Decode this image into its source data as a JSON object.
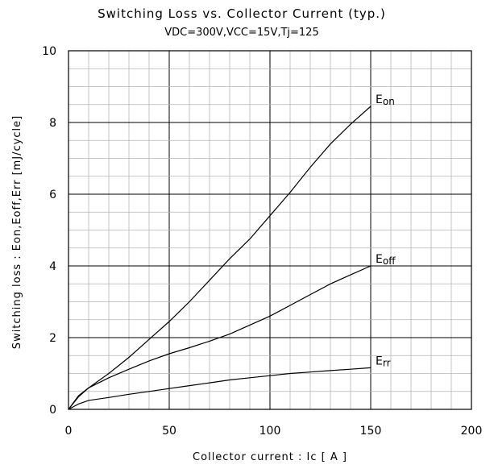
{
  "chart_data": {
    "type": "line",
    "title": "Switching Loss vs. Collector Current (typ.)",
    "subtitle": "VDC=300V,VCC=15V,Tj=125",
    "xlabel": "Collector current : Ic [ A ]",
    "ylabel": "Switching loss : Eon,Eoff,Err [mJ/cycle]",
    "xlim": [
      0,
      200
    ],
    "ylim": [
      0,
      10
    ],
    "x_ticks": [
      "0",
      "50",
      "100",
      "150",
      "200"
    ],
    "y_ticks": [
      "0",
      "2",
      "4",
      "6",
      "8",
      "10"
    ],
    "grid": "on",
    "series": [
      {
        "name": "Eon",
        "x": [
          0,
          5,
          10,
          20,
          30,
          40,
          50,
          60,
          70,
          80,
          90,
          100,
          110,
          120,
          130,
          140,
          150
        ],
        "values": [
          0,
          0.35,
          0.6,
          1.0,
          1.45,
          1.95,
          2.45,
          3.0,
          3.6,
          4.2,
          4.75,
          5.4,
          6.05,
          6.75,
          7.4,
          7.95,
          8.45
        ]
      },
      {
        "name": "Eoff",
        "x": [
          0,
          5,
          10,
          20,
          30,
          40,
          50,
          60,
          70,
          80,
          90,
          100,
          110,
          120,
          130,
          140,
          150
        ],
        "values": [
          0,
          0.38,
          0.6,
          0.88,
          1.12,
          1.35,
          1.55,
          1.72,
          1.9,
          2.1,
          2.35,
          2.6,
          2.9,
          3.2,
          3.5,
          3.75,
          4.0
        ]
      },
      {
        "name": "Err",
        "x": [
          0,
          5,
          10,
          20,
          30,
          40,
          50,
          60,
          70,
          80,
          90,
          100,
          110,
          120,
          130,
          140,
          150
        ],
        "values": [
          0,
          0.15,
          0.25,
          0.33,
          0.42,
          0.5,
          0.58,
          0.66,
          0.74,
          0.82,
          0.88,
          0.94,
          1.0,
          1.04,
          1.08,
          1.12,
          1.16
        ]
      }
    ]
  }
}
